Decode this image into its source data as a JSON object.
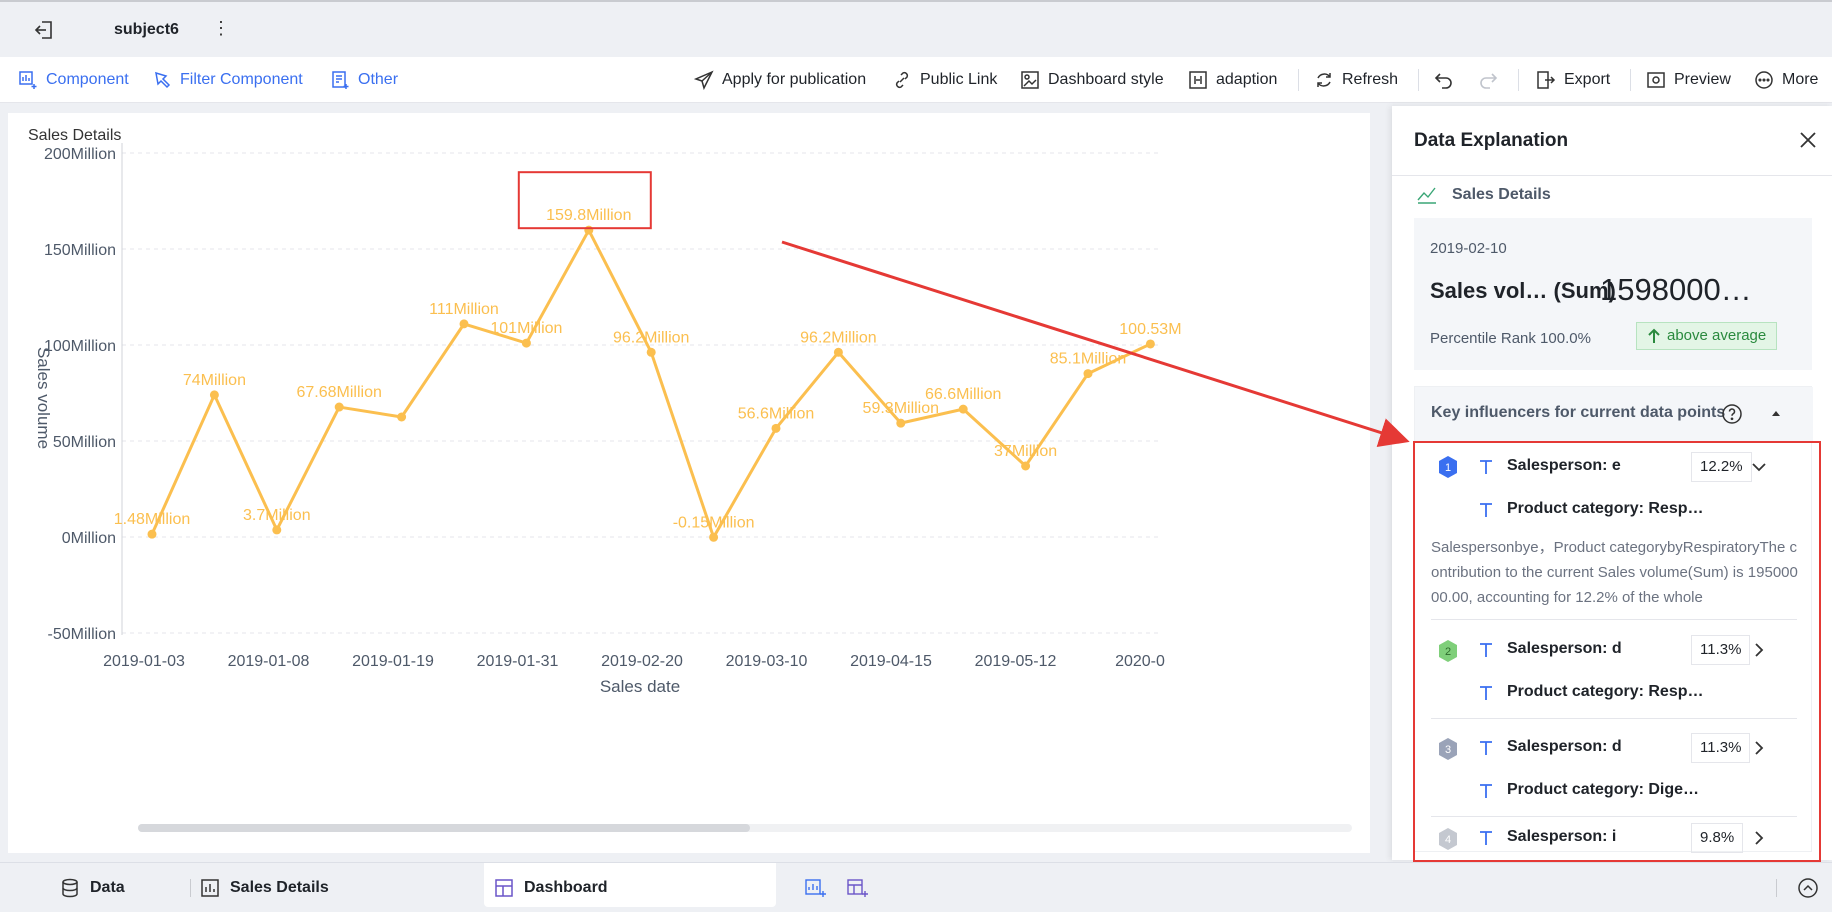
{
  "header": {
    "title": "subject6"
  },
  "toolbar": {
    "component": "Component",
    "filter_component": "Filter Component",
    "other": "Other",
    "apply_publication": "Apply for publication",
    "public_link": "Public Link",
    "dashboard_style": "Dashboard style",
    "adaption": "adaption",
    "refresh": "Refresh",
    "export": "Export",
    "preview": "Preview",
    "more": "More"
  },
  "chart": {
    "title": "Sales Details"
  },
  "chart_data": {
    "type": "line",
    "title": "Sales Details",
    "xlabel": "Sales date",
    "ylabel": "Sales volume",
    "ylim": [
      -50,
      200
    ],
    "yticks": [
      "200Million",
      "150Million",
      "100Million",
      "50Million",
      "0Million",
      "-50Million"
    ],
    "yticks_values": [
      200,
      150,
      100,
      50,
      0,
      -50
    ],
    "xticks": [
      "2019-01-03",
      "2019-01-08",
      "2019-01-19",
      "2019-01-31",
      "2019-02-20",
      "2019-03-10",
      "2019-04-15",
      "2019-05-12",
      "2020-0"
    ],
    "values": [
      1.48,
      74,
      3.7,
      67.68,
      62.5,
      111,
      101,
      159.8,
      96.2,
      -0.15,
      56.6,
      96.2,
      59.3,
      66.6,
      37,
      85.1,
      100.53
    ],
    "labels": [
      "1.48Million",
      "74Million",
      "3.7Million",
      "67.68Million",
      "",
      "111Million",
      "101Million",
      "159.8Million",
      "96.2Million",
      "-0.15Million",
      "56.6Million",
      "96.2Million",
      "59.3Million",
      "66.6Million",
      "37Million",
      "85.1Million",
      "100.53M"
    ],
    "color": "#fbbf4f",
    "grid": true
  },
  "panel": {
    "title": "Data Explanation",
    "section": "Sales Details",
    "date": "2019-02-10",
    "measure": "Sales vol… (Sum)",
    "value": "1598000…",
    "rank": "Percentile Rank 100.0%",
    "badge": "above average",
    "influencers_title": "Key influencers for current data points",
    "items": [
      {
        "name": "Salesperson: e",
        "sub": "Product category: Resp…",
        "pct": "12.2%",
        "desc": "Salespersonbye，Product categorybyRespiratoryThe contribution to the current Sales volume(Sum) is 19500000.00, accounting for 12.2% of the whole"
      },
      {
        "name": "Salesperson: d",
        "sub": "Product category: Resp…",
        "pct": "11.3%"
      },
      {
        "name": "Salesperson: d",
        "sub": "Product category: Dige…",
        "pct": "11.3%"
      },
      {
        "name": "Salesperson: i",
        "pct": "9.8%"
      }
    ]
  },
  "bottom": {
    "data": "Data",
    "sales_details": "Sales Details",
    "dashboard": "Dashboard"
  },
  "colors": {
    "accent": "#3a6ff0",
    "line": "#fbbf4f",
    "highlight": "#e53935",
    "positive": "#2a8a3e"
  }
}
